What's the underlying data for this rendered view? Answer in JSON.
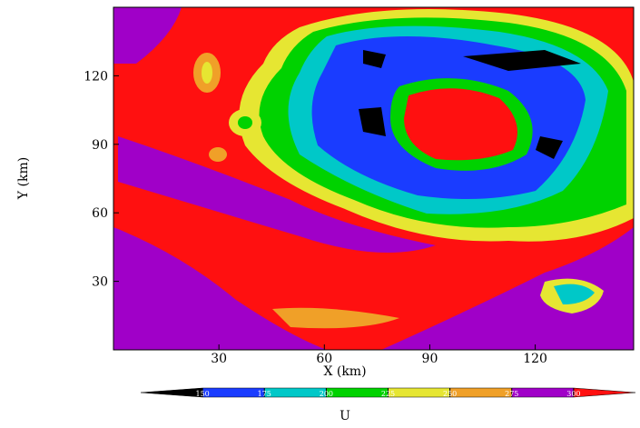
{
  "chart_data": {
    "type": "contour",
    "x_label": "X (km)",
    "y_label": "Y (km)",
    "xlim": [
      0,
      148
    ],
    "ylim": [
      0,
      150
    ],
    "xticks": [
      30,
      60,
      90,
      120
    ],
    "yticks": [
      30,
      60,
      90,
      120
    ],
    "colorbar": {
      "label": "U",
      "colors": [
        "#000000",
        "#1a3cff",
        "#00c8c8",
        "#00d200",
        "#e6e632",
        "#f0a028",
        "#a000c8",
        "#ff1010"
      ],
      "levels": [
        150,
        175,
        200,
        225,
        250,
        275,
        300
      ]
    }
  }
}
